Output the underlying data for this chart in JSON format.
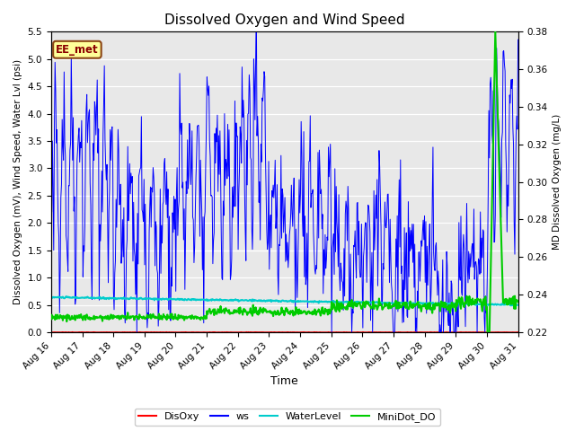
{
  "title": "Dissolved Oxygen and Wind Speed",
  "xlabel": "Time",
  "ylabel_left": "Dissolved Oxygen (mV), Wind Speed, Water Lvl (psi)",
  "ylabel_right": "MD Dissolved Oxygen (mg/L)",
  "ylim_left": [
    0.0,
    5.5
  ],
  "ylim_right": [
    0.22,
    0.38
  ],
  "yticks_left": [
    0.0,
    0.5,
    1.0,
    1.5,
    2.0,
    2.5,
    3.0,
    3.5,
    4.0,
    4.5,
    5.0,
    5.5
  ],
  "yticks_right": [
    0.22,
    0.24,
    0.26,
    0.28,
    0.3,
    0.32,
    0.34,
    0.36,
    0.38
  ],
  "xtick_labels": [
    "Aug 16",
    "Aug 17",
    "Aug 18",
    "Aug 19",
    "Aug 20",
    "Aug 21",
    "Aug 22",
    "Aug 23",
    "Aug 24",
    "Aug 25",
    "Aug 26",
    "Aug 27",
    "Aug 28",
    "Aug 29",
    "Aug 30",
    "Aug 31"
  ],
  "annotation_text": "EE_met",
  "annotation_color": "#8B0000",
  "annotation_bg": "#FFFF99",
  "annotation_border": "#8B4513",
  "colors": {
    "DisOxy": "#FF0000",
    "ws": "#0000FF",
    "WaterLevel": "#00CCCC",
    "MiniDot_DO": "#00CC00"
  },
  "plot_bg": "#E8E8E8",
  "fig_bg": "#FFFFFF"
}
